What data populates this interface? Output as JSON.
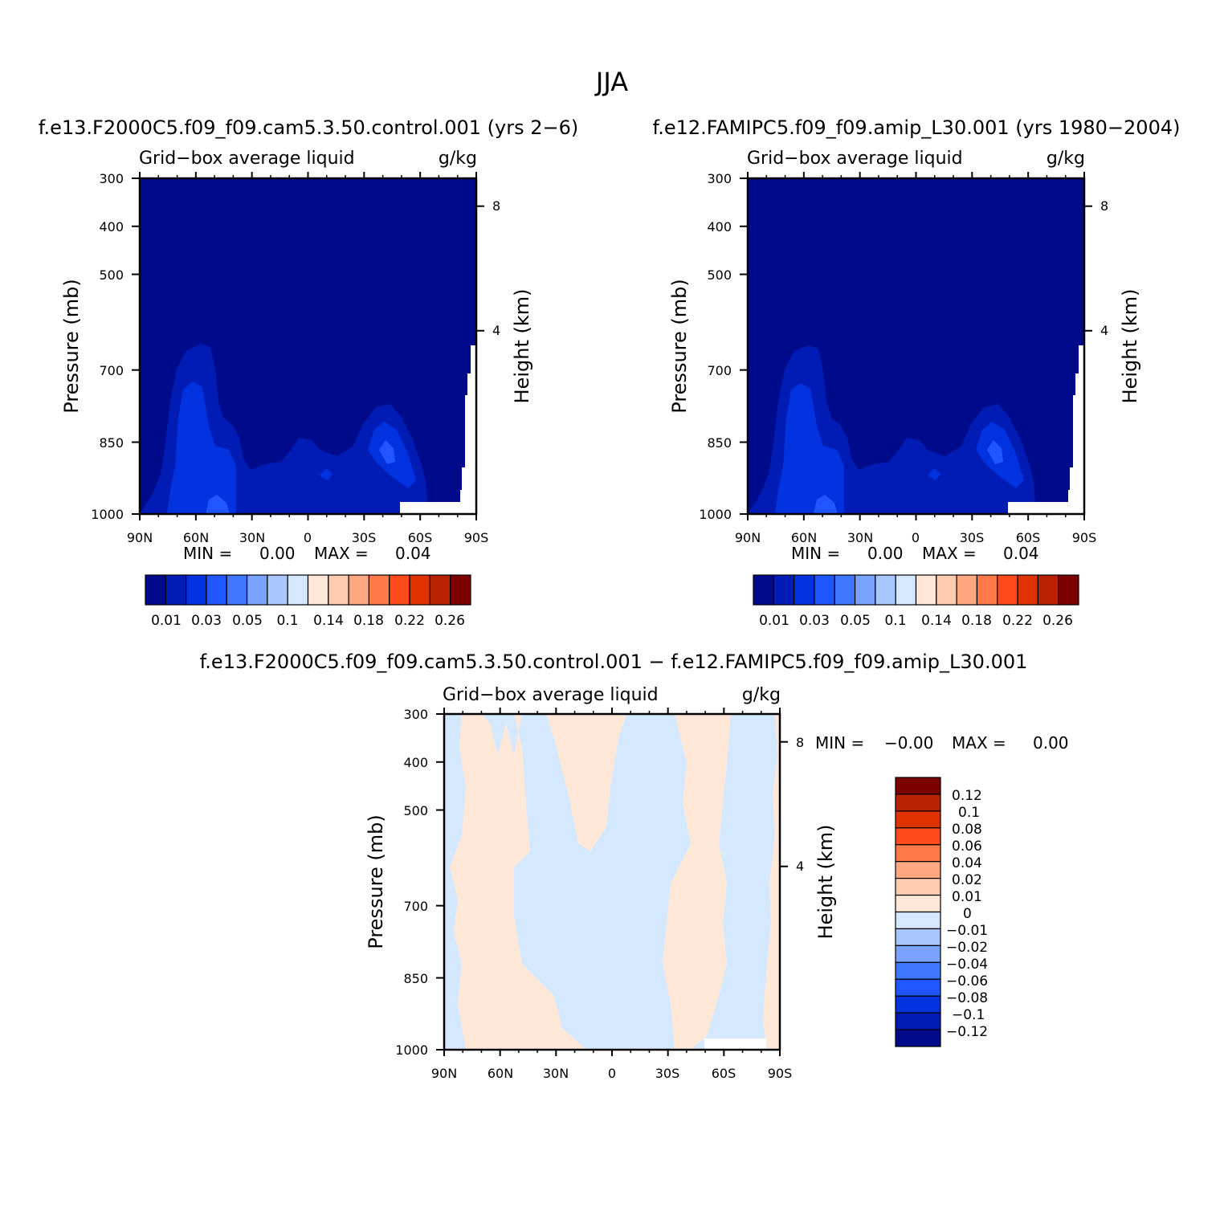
{
  "page_title": "JJA",
  "chart_data": [
    {
      "type": "heatmap",
      "title": "f.e13.F2000C5.f09_f09.cam5.3.50.control.001 (yrs 2−6)",
      "subtitle_left": "Grid−box average liquid",
      "subtitle_right": "g/kg",
      "xlabel": "",
      "ylabel": "Pressure (mb)",
      "ylabel_right": "Height (km)",
      "x_ticks": [
        "90N",
        "60N",
        "30N",
        "0",
        "30S",
        "60S",
        "90S"
      ],
      "y_ticks": [
        "300",
        "400",
        "500",
        "700",
        "850",
        "1000"
      ],
      "y_right_ticks": [
        "8",
        "4"
      ],
      "min_label": "MIN =",
      "min_value": "0.00",
      "max_label": "MAX =",
      "max_value": "0.04",
      "colorbar_labels": [
        "0.01",
        "0.03",
        "0.05",
        "0.1",
        "0.14",
        "0.18",
        "0.22",
        "0.26"
      ],
      "colorbar_colors": [
        "#000b8c",
        "#001cb4",
        "#0032e0",
        "#1f56ff",
        "#3d78ff",
        "#7aa3ff",
        "#aac6ff",
        "#d4e8ff",
        "#ffe8d8",
        "#ffcbb0",
        "#ffa882",
        "#ff7a48",
        "#ff4a1c",
        "#e03100",
        "#b82200",
        "#7d0000"
      ]
    },
    {
      "type": "heatmap",
      "title": "f.e12.FAMIPC5.f09_f09.amip_L30.001 (yrs 1980−2004)",
      "subtitle_left": "Grid−box average liquid",
      "subtitle_right": "g/kg",
      "xlabel": "",
      "ylabel": "Pressure (mb)",
      "ylabel_right": "Height (km)",
      "x_ticks": [
        "90N",
        "60N",
        "30N",
        "0",
        "30S",
        "60S",
        "90S"
      ],
      "y_ticks": [
        "300",
        "400",
        "500",
        "700",
        "850",
        "1000"
      ],
      "y_right_ticks": [
        "8",
        "4"
      ],
      "min_label": "MIN =",
      "min_value": "0.00",
      "max_label": "MAX =",
      "max_value": "0.04",
      "colorbar_labels": [
        "0.01",
        "0.03",
        "0.05",
        "0.1",
        "0.14",
        "0.18",
        "0.22",
        "0.26"
      ],
      "colorbar_colors": [
        "#000b8c",
        "#001cb4",
        "#0032e0",
        "#1f56ff",
        "#3d78ff",
        "#7aa3ff",
        "#aac6ff",
        "#d4e8ff",
        "#ffe8d8",
        "#ffcbb0",
        "#ffa882",
        "#ff7a48",
        "#ff4a1c",
        "#e03100",
        "#b82200",
        "#7d0000"
      ]
    },
    {
      "type": "heatmap",
      "title": "f.e13.F2000C5.f09_f09.cam5.3.50.control.001 − f.e12.FAMIPC5.f09_f09.amip_L30.001",
      "subtitle_left": "Grid−box average liquid",
      "subtitle_right": "g/kg",
      "xlabel": "",
      "ylabel": "Pressure (mb)",
      "ylabel_right": "Height (km)",
      "x_ticks": [
        "90N",
        "60N",
        "30N",
        "0",
        "30S",
        "60S",
        "90S"
      ],
      "y_ticks": [
        "300",
        "400",
        "500",
        "700",
        "850",
        "1000"
      ],
      "y_right_ticks": [
        "8",
        "4"
      ],
      "min_label": "MIN =",
      "min_value": "−0.00",
      "max_label": "MAX =",
      "max_value": "0.00",
      "colorbar_labels": [
        "0.12",
        "0.1",
        "0.08",
        "0.06",
        "0.04",
        "0.02",
        "0.01",
        "0",
        "−0.01",
        "−0.02",
        "−0.04",
        "−0.06",
        "−0.08",
        "−0.1",
        "−0.12"
      ],
      "colorbar_colors": [
        "#7d0000",
        "#b82200",
        "#e03100",
        "#ff4a1c",
        "#ff7a48",
        "#ffa882",
        "#ffcbb0",
        "#ffe8d8",
        "#d4e8ff",
        "#aac6ff",
        "#7aa3ff",
        "#3d78ff",
        "#1f56ff",
        "#0032e0",
        "#001cb4",
        "#000b8c"
      ]
    }
  ]
}
